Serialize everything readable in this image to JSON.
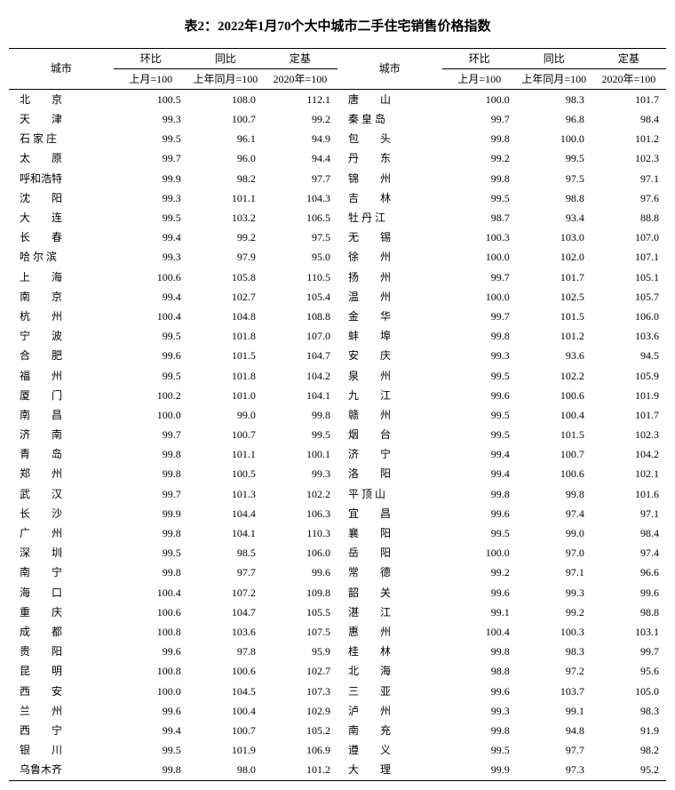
{
  "title": "表2：2022年1月70个大中城市二手住宅销售价格指数",
  "headers": {
    "city": "城市",
    "mom": "环比",
    "yoy": "同比",
    "base": "定基",
    "mom_sub": "上月=100",
    "yoy_sub": "上年同月=100",
    "base_sub": "2020年=100"
  },
  "style": {
    "font_family": "SimSun",
    "title_fontsize": 15,
    "cell_fontsize": 12,
    "border_color": "#000000",
    "background_color": "#ffffff",
    "num_align": "right"
  },
  "left": [
    {
      "city": "北　　京",
      "mom": "100.5",
      "yoy": "108.0",
      "base": "112.1"
    },
    {
      "city": "天　　津",
      "mom": "99.3",
      "yoy": "100.7",
      "base": "99.2"
    },
    {
      "city": "石 家 庄",
      "mom": "99.5",
      "yoy": "96.1",
      "base": "94.9"
    },
    {
      "city": "太　　原",
      "mom": "99.7",
      "yoy": "96.0",
      "base": "94.4"
    },
    {
      "city": "呼和浩特",
      "mom": "99.9",
      "yoy": "98.2",
      "base": "97.7"
    },
    {
      "city": "沈　　阳",
      "mom": "99.3",
      "yoy": "101.1",
      "base": "104.3"
    },
    {
      "city": "大　　连",
      "mom": "99.5",
      "yoy": "103.2",
      "base": "106.5"
    },
    {
      "city": "长　　春",
      "mom": "99.4",
      "yoy": "99.2",
      "base": "97.5"
    },
    {
      "city": "哈 尔 滨",
      "mom": "99.3",
      "yoy": "97.9",
      "base": "95.0"
    },
    {
      "city": "上　　海",
      "mom": "100.6",
      "yoy": "105.8",
      "base": "110.5"
    },
    {
      "city": "南　　京",
      "mom": "99.4",
      "yoy": "102.7",
      "base": "105.4"
    },
    {
      "city": "杭　　州",
      "mom": "100.4",
      "yoy": "104.8",
      "base": "108.8"
    },
    {
      "city": "宁　　波",
      "mom": "99.5",
      "yoy": "101.8",
      "base": "107.0"
    },
    {
      "city": "合　　肥",
      "mom": "99.6",
      "yoy": "101.5",
      "base": "104.7"
    },
    {
      "city": "福　　州",
      "mom": "99.5",
      "yoy": "101.8",
      "base": "104.2"
    },
    {
      "city": "厦　　门",
      "mom": "100.2",
      "yoy": "101.0",
      "base": "104.1"
    },
    {
      "city": "南　　昌",
      "mom": "100.0",
      "yoy": "99.0",
      "base": "99.8"
    },
    {
      "city": "济　　南",
      "mom": "99.7",
      "yoy": "100.7",
      "base": "99.5"
    },
    {
      "city": "青　　岛",
      "mom": "99.8",
      "yoy": "101.1",
      "base": "100.1"
    },
    {
      "city": "郑　　州",
      "mom": "99.8",
      "yoy": "100.5",
      "base": "99.3"
    },
    {
      "city": "武　　汉",
      "mom": "99.7",
      "yoy": "101.3",
      "base": "102.2"
    },
    {
      "city": "长　　沙",
      "mom": "99.9",
      "yoy": "104.4",
      "base": "106.3"
    },
    {
      "city": "广　　州",
      "mom": "99.8",
      "yoy": "104.1",
      "base": "110.3"
    },
    {
      "city": "深　　圳",
      "mom": "99.5",
      "yoy": "98.5",
      "base": "106.0"
    },
    {
      "city": "南　　宁",
      "mom": "99.8",
      "yoy": "97.7",
      "base": "99.6"
    },
    {
      "city": "海　　口",
      "mom": "100.4",
      "yoy": "107.2",
      "base": "109.8"
    },
    {
      "city": "重　　庆",
      "mom": "100.6",
      "yoy": "104.7",
      "base": "105.5"
    },
    {
      "city": "成　　都",
      "mom": "100.8",
      "yoy": "103.6",
      "base": "107.5"
    },
    {
      "city": "贵　　阳",
      "mom": "99.6",
      "yoy": "97.8",
      "base": "95.9"
    },
    {
      "city": "昆　　明",
      "mom": "100.8",
      "yoy": "100.6",
      "base": "102.7"
    },
    {
      "city": "西　　安",
      "mom": "100.0",
      "yoy": "104.5",
      "base": "107.3"
    },
    {
      "city": "兰　　州",
      "mom": "99.6",
      "yoy": "100.4",
      "base": "102.9"
    },
    {
      "city": "西　　宁",
      "mom": "99.4",
      "yoy": "100.7",
      "base": "105.2"
    },
    {
      "city": "银　　川",
      "mom": "99.5",
      "yoy": "101.9",
      "base": "106.9"
    },
    {
      "city": "乌鲁木齐",
      "mom": "99.8",
      "yoy": "98.0",
      "base": "101.2"
    }
  ],
  "right": [
    {
      "city": "唐　　山",
      "mom": "100.0",
      "yoy": "98.3",
      "base": "101.7"
    },
    {
      "city": "秦 皇 岛",
      "mom": "99.7",
      "yoy": "96.8",
      "base": "98.4"
    },
    {
      "city": "包　　头",
      "mom": "99.8",
      "yoy": "100.0",
      "base": "101.2"
    },
    {
      "city": "丹　　东",
      "mom": "99.2",
      "yoy": "99.5",
      "base": "102.3"
    },
    {
      "city": "锦　　州",
      "mom": "99.8",
      "yoy": "97.5",
      "base": "97.1"
    },
    {
      "city": "吉　　林",
      "mom": "99.5",
      "yoy": "98.8",
      "base": "97.6"
    },
    {
      "city": "牡 丹 江",
      "mom": "98.7",
      "yoy": "93.4",
      "base": "88.8"
    },
    {
      "city": "无　　锡",
      "mom": "100.3",
      "yoy": "103.0",
      "base": "107.0"
    },
    {
      "city": "徐　　州",
      "mom": "100.0",
      "yoy": "102.0",
      "base": "107.1"
    },
    {
      "city": "扬　　州",
      "mom": "99.7",
      "yoy": "101.7",
      "base": "105.1"
    },
    {
      "city": "温　　州",
      "mom": "100.0",
      "yoy": "102.5",
      "base": "105.7"
    },
    {
      "city": "金　　华",
      "mom": "99.7",
      "yoy": "101.5",
      "base": "106.0"
    },
    {
      "city": "蚌　　埠",
      "mom": "99.8",
      "yoy": "101.2",
      "base": "103.6"
    },
    {
      "city": "安　　庆",
      "mom": "99.3",
      "yoy": "93.6",
      "base": "94.5"
    },
    {
      "city": "泉　　州",
      "mom": "99.5",
      "yoy": "102.2",
      "base": "105.9"
    },
    {
      "city": "九　　江",
      "mom": "99.6",
      "yoy": "100.6",
      "base": "101.9"
    },
    {
      "city": "赣　　州",
      "mom": "99.5",
      "yoy": "100.4",
      "base": "101.7"
    },
    {
      "city": "烟　　台",
      "mom": "99.5",
      "yoy": "101.5",
      "base": "102.3"
    },
    {
      "city": "济　　宁",
      "mom": "99.4",
      "yoy": "100.7",
      "base": "104.2"
    },
    {
      "city": "洛　　阳",
      "mom": "99.4",
      "yoy": "100.6",
      "base": "102.1"
    },
    {
      "city": "平 顶 山",
      "mom": "99.8",
      "yoy": "99.8",
      "base": "101.6"
    },
    {
      "city": "宜　　昌",
      "mom": "99.6",
      "yoy": "97.4",
      "base": "97.1"
    },
    {
      "city": "襄　　阳",
      "mom": "99.5",
      "yoy": "99.0",
      "base": "98.4"
    },
    {
      "city": "岳　　阳",
      "mom": "100.0",
      "yoy": "97.0",
      "base": "97.4"
    },
    {
      "city": "常　　德",
      "mom": "99.2",
      "yoy": "97.1",
      "base": "96.6"
    },
    {
      "city": "韶　　关",
      "mom": "99.6",
      "yoy": "99.3",
      "base": "99.6"
    },
    {
      "city": "湛　　江",
      "mom": "99.1",
      "yoy": "99.2",
      "base": "98.8"
    },
    {
      "city": "惠　　州",
      "mom": "100.4",
      "yoy": "100.3",
      "base": "103.1"
    },
    {
      "city": "桂　　林",
      "mom": "99.8",
      "yoy": "98.3",
      "base": "99.7"
    },
    {
      "city": "北　　海",
      "mom": "98.8",
      "yoy": "97.2",
      "base": "95.6"
    },
    {
      "city": "三　　亚",
      "mom": "99.6",
      "yoy": "103.7",
      "base": "105.0"
    },
    {
      "city": "泸　　州",
      "mom": "99.3",
      "yoy": "99.1",
      "base": "98.3"
    },
    {
      "city": "南　　充",
      "mom": "99.8",
      "yoy": "94.8",
      "base": "91.9"
    },
    {
      "city": "遵　　义",
      "mom": "99.5",
      "yoy": "97.7",
      "base": "98.2"
    },
    {
      "city": "大　　理",
      "mom": "99.9",
      "yoy": "97.3",
      "base": "95.2"
    }
  ]
}
